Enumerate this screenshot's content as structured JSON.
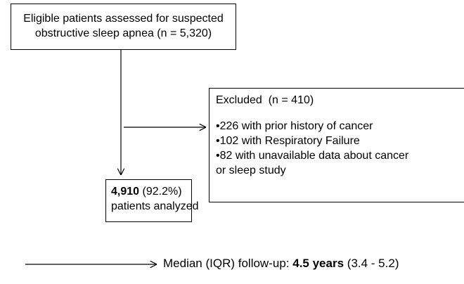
{
  "screening": {
    "lines": [
      "Eligible patients assessed for suspected",
      "obstructive sleep apnea (n = 5,320)"
    ]
  },
  "excluded": {
    "title": "Excluded  (n = 410)",
    "items": [
      [
        "226 with prior history of cancer"
      ],
      [
        "102 with Respiratory Failure"
      ],
      [
        "82 with unavailable data about cancer",
        "or sleep study"
      ]
    ]
  },
  "analyzed": {
    "count": "4,910",
    "percent": "(92.2%)",
    "label": "patients analyzed"
  },
  "follow_up": {
    "prefix": "Median (IQR) follow-up:",
    "duration": "4.5 years",
    "range": "(3.4 - 5.2)"
  }
}
